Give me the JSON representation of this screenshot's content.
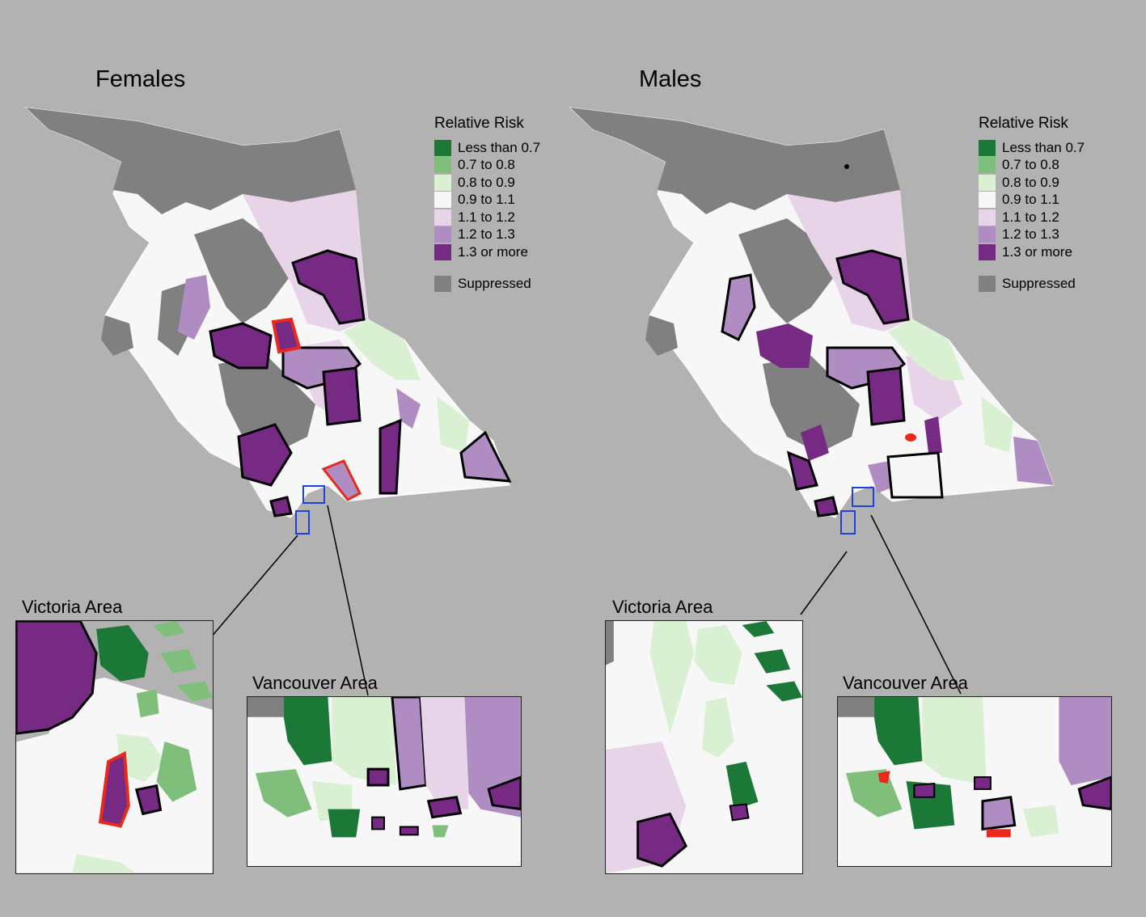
{
  "panels": [
    {
      "title": "Females",
      "legend_title": "Relative Risk"
    },
    {
      "title": "Males",
      "legend_title": "Relative Risk"
    }
  ],
  "legend": {
    "items": [
      {
        "label": "Less than 0.7",
        "color": "#1b7837"
      },
      {
        "label": "0.7 to 0.8",
        "color": "#7fbf7b"
      },
      {
        "label": "0.8 to 0.9",
        "color": "#d9f0d3"
      },
      {
        "label": "0.9 to 1.1",
        "color": "#f7f7f7"
      },
      {
        "label": "1.1 to 1.2",
        "color": "#e7d4e8"
      },
      {
        "label": "1.2 to 1.3",
        "color": "#af8dc3"
      },
      {
        "label": "1.3 or more",
        "color": "#762a83"
      }
    ],
    "suppressed": {
      "label": "Suppressed",
      "color": "#808080"
    }
  },
  "insets": {
    "victoria": "Victoria Area",
    "vancouver": "Vancouver Area"
  }
}
